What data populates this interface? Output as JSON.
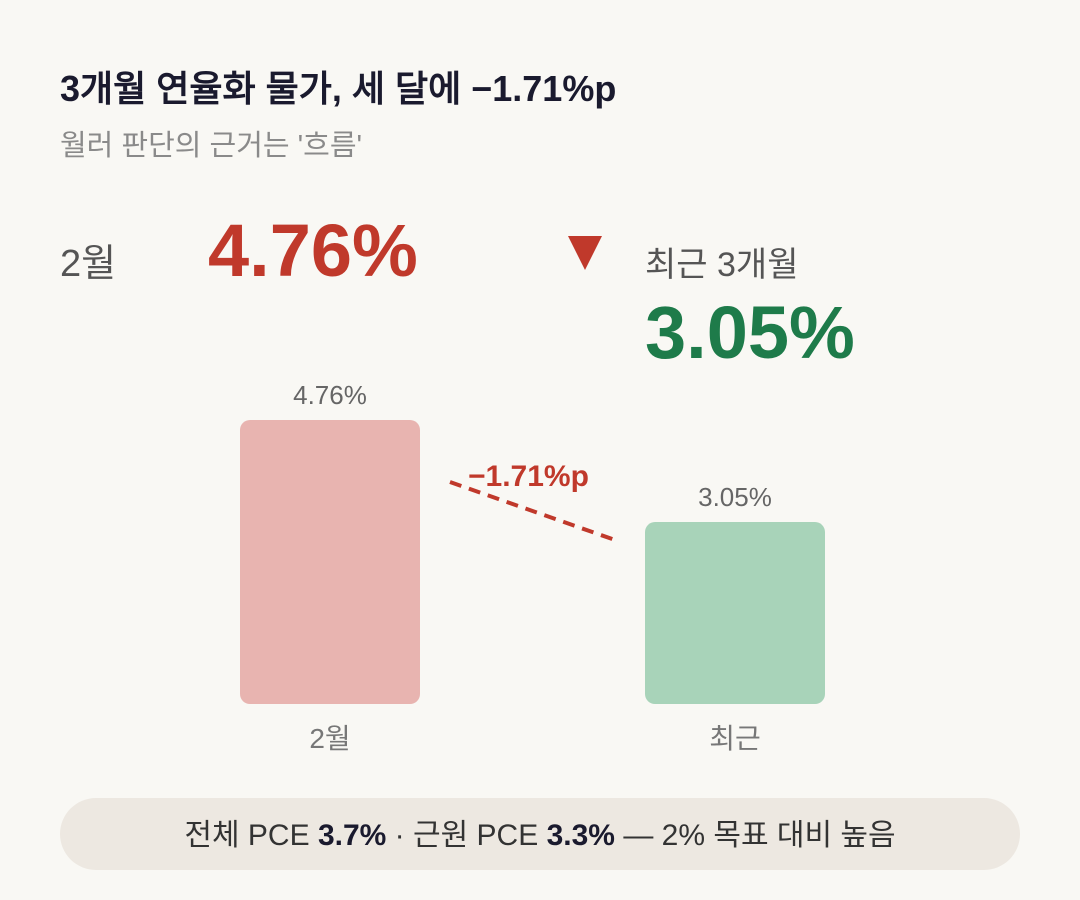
{
  "chart_data": {
    "type": "bar",
    "title": "3개월 연율화 물가, 세 달에 −1.71%p",
    "subtitle": "월러 판단의 근거는 '흐름'",
    "compare_right_label": "최근 3개월",
    "categories": [
      "2월",
      "최근"
    ],
    "values": [
      4.76,
      3.05
    ],
    "value_labels": [
      "4.76%",
      "3.05%"
    ],
    "colors": [
      "#e8b4b0",
      "#a8d3b9"
    ],
    "annotation": "−1.71%p",
    "footer": {
      "items": [
        {
          "label": "전체 PCE",
          "value": "3.7%"
        },
        {
          "label": "근원 PCE",
          "value": "3.3%"
        }
      ],
      "separator": "·",
      "note": "— 2% 목표 대비 높음"
    }
  }
}
